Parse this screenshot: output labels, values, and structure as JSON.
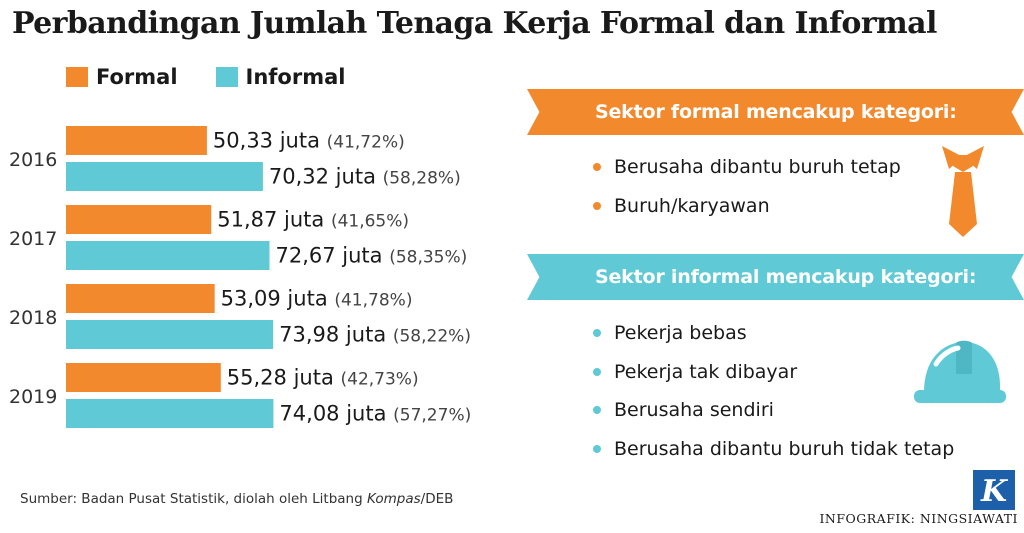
{
  "title": "Perbandingan Jumlah Tenaga Kerja Formal dan Informal",
  "colors": {
    "formal": "#f28a2d",
    "informal": "#5fc9d6",
    "logo": "#1d5fa8"
  },
  "legend": [
    {
      "label": "Formal",
      "color": "#f28a2d"
    },
    {
      "label": "Informal",
      "color": "#5fc9d6"
    }
  ],
  "chart_data": {
    "type": "bar",
    "orientation": "horizontal",
    "categories": [
      "2016",
      "2017",
      "2018",
      "2019"
    ],
    "series": [
      {
        "name": "Formal",
        "values": [
          50.33,
          51.87,
          53.09,
          55.28
        ],
        "value_labels": [
          "50,33 juta",
          "51,87 juta",
          "53,09 juta",
          "55,28 juta"
        ],
        "percent_labels": [
          "(41,72%)",
          "(41,65%)",
          "(41,78%)",
          "(42,73%)"
        ]
      },
      {
        "name": "Informal",
        "values": [
          70.32,
          72.67,
          73.98,
          74.08
        ],
        "value_labels": [
          "70,32 juta",
          "72,67 juta",
          "73,98 juta",
          "74,08 juta"
        ],
        "percent_labels": [
          "(58,28%)",
          "(58,35%)",
          "(58,22%)",
          "(57,27%)"
        ]
      }
    ],
    "xlim": [
      0,
      80
    ],
    "grid": false,
    "legend_position": "top-left"
  },
  "formal_sector": {
    "heading": "Sektor formal mencakup kategori:",
    "items": [
      "Berusaha dibantu buruh tetap",
      "Buruh/karyawan"
    ],
    "icon": "necktie-icon"
  },
  "informal_sector": {
    "heading": "Sektor informal mencakup kategori:",
    "items": [
      "Pekerja bebas",
      "Pekerja tak dibayar",
      "Berusaha sendiri",
      "Berusaha dibantu buruh tidak tetap"
    ],
    "icon": "hard-hat-icon"
  },
  "source": {
    "prefix": "Sumber: Badan Pusat Statistik, diolah oleh Litbang ",
    "italic": "Kompas",
    "suffix": "/DEB"
  },
  "credit": "INFOGRAFIK: NINGSIAWATI",
  "logo": {
    "letter": "K",
    "icon": "kompas-logo-icon"
  }
}
